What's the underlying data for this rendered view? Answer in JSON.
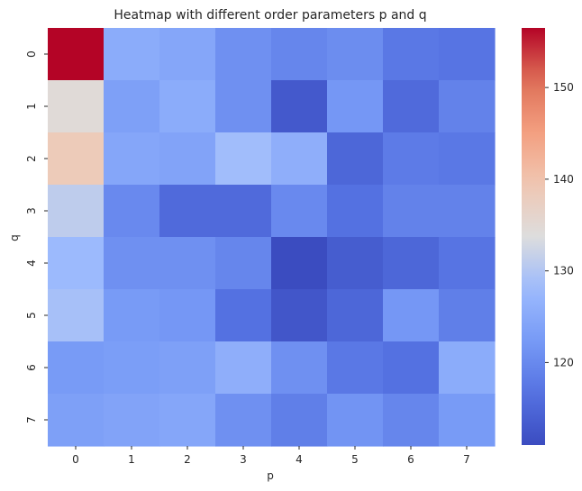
{
  "chart_data": {
    "type": "heatmap",
    "title": "Heatmap with different order parameters p and q",
    "xlabel": "p",
    "ylabel": "q",
    "x_categories": [
      "0",
      "1",
      "2",
      "3",
      "4",
      "5",
      "6",
      "7"
    ],
    "y_categories": [
      "0",
      "1",
      "2",
      "3",
      "4",
      "5",
      "6",
      "7"
    ],
    "values": [
      [
        156.5,
        125.5,
        124.5,
        121.0,
        119.5,
        120.5,
        117.5,
        117.0
      ],
      [
        134.5,
        123.5,
        125.5,
        121.0,
        113.0,
        122.0,
        115.5,
        119.0
      ],
      [
        138.5,
        124.5,
        124.0,
        128.5,
        126.0,
        115.0,
        118.0,
        117.5
      ],
      [
        131.0,
        120.0,
        115.5,
        115.5,
        120.0,
        116.5,
        119.0,
        119.0
      ],
      [
        128.0,
        121.0,
        121.0,
        119.5,
        111.0,
        113.5,
        115.0,
        117.0
      ],
      [
        129.0,
        122.5,
        122.0,
        116.5,
        112.5,
        115.0,
        122.0,
        118.5
      ],
      [
        122.5,
        123.0,
        123.5,
        126.0,
        121.0,
        117.5,
        116.5,
        125.5
      ],
      [
        123.5,
        124.0,
        124.5,
        121.0,
        118.5,
        121.5,
        119.5,
        122.5
      ]
    ],
    "vmin": 111.0,
    "vmax": 156.5,
    "colormap": "coolwarm",
    "colorbar": {
      "ticks": [
        120,
        130,
        140,
        150
      ],
      "tick_labels": [
        "120",
        "130",
        "140",
        "150"
      ]
    },
    "grid": false
  }
}
